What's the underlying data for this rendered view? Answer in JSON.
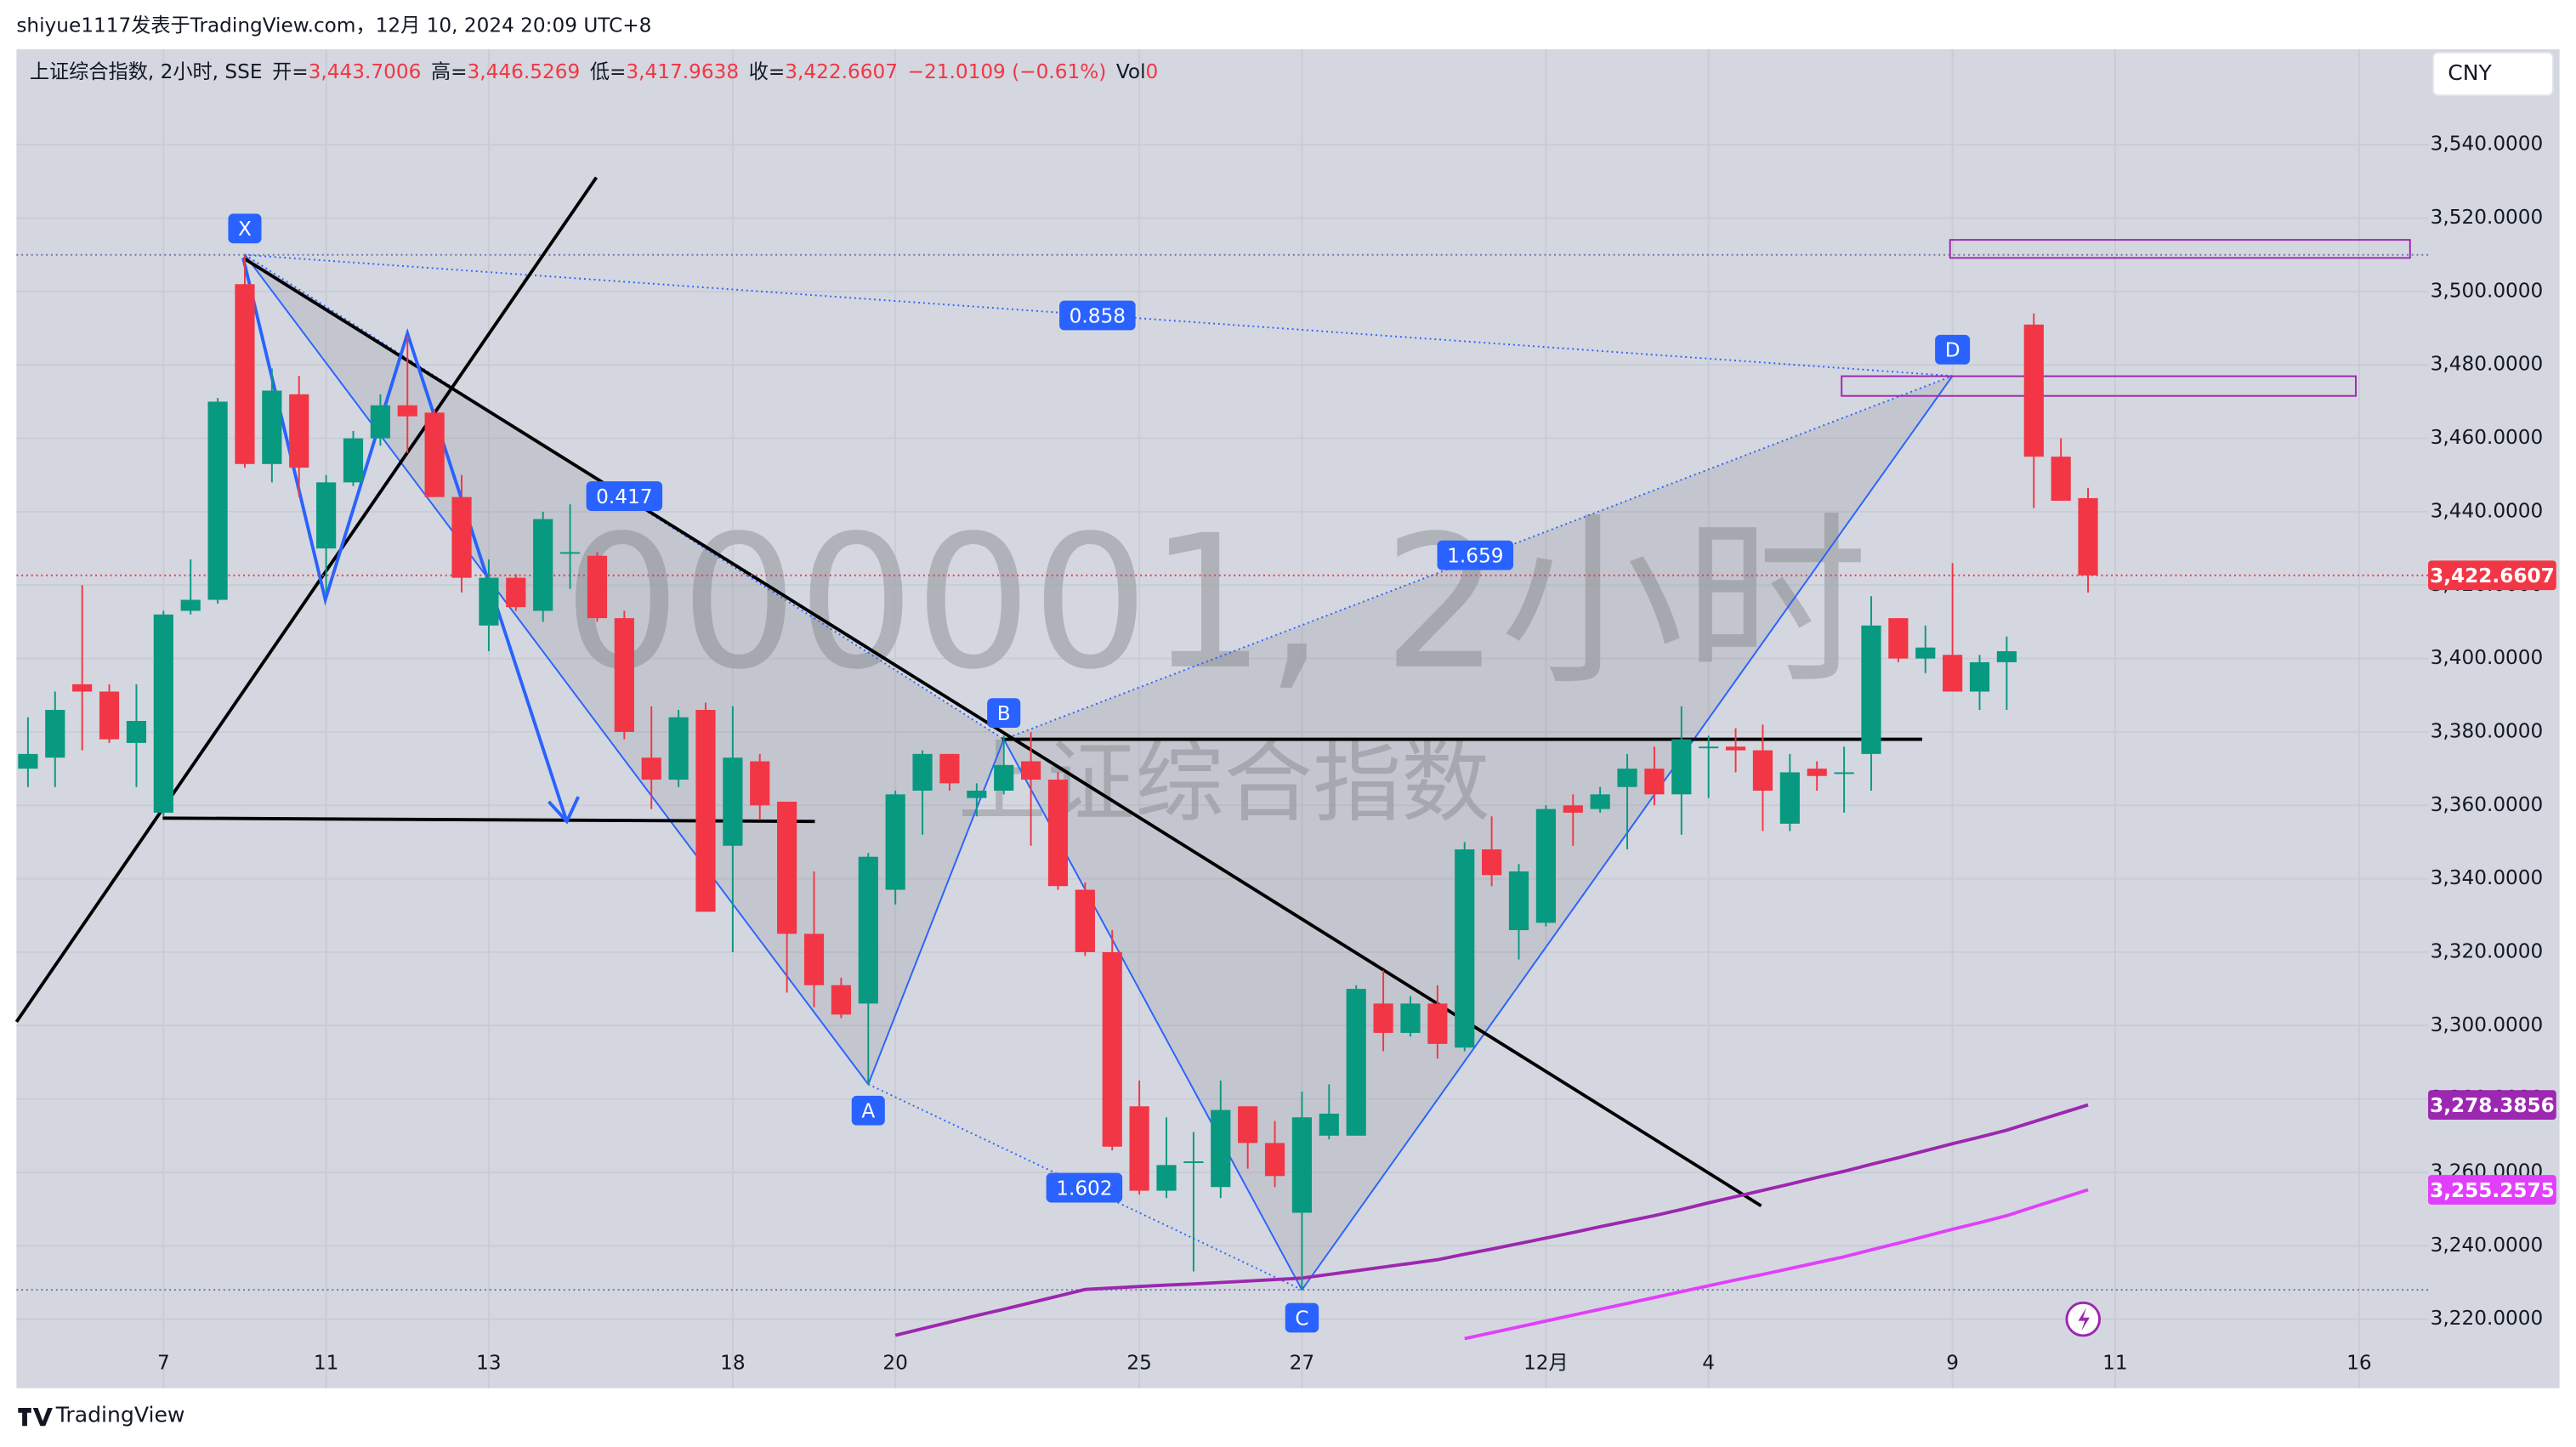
{
  "top_bar": {
    "text": "shiyue1117发表于TradingView.com，12月 10, 2024 20:09 UTC+8"
  },
  "header": {
    "symbol": "上证综合指数, 2小时, SSE",
    "fields": [
      {
        "name": "开=",
        "value": "3,443.7006"
      },
      {
        "name": "高=",
        "value": "3,446.5269"
      },
      {
        "name": "低=",
        "value": "3,417.9638"
      },
      {
        "name": "收=",
        "value": "3,422.6607"
      }
    ],
    "change": "−21.0109 (−0.61%)",
    "volume_name": "Vol",
    "volume_value": "0"
  },
  "currency": "CNY",
  "watermark": {
    "line1": "000001, 2小时",
    "line2": "上证综合指数"
  },
  "footer": {
    "brand": "TradingView"
  },
  "chart_data": {
    "type": "candlestick",
    "up_color": "#089981",
    "down_color": "#f23645",
    "ylim": [
      3201.2,
      3566
    ],
    "yticks": [
      {
        "value": 3220,
        "label": "3,220.0000"
      },
      {
        "value": 3240,
        "label": "3,240.0000"
      },
      {
        "value": 3260,
        "label": "3,260.0000"
      },
      {
        "value": 3280,
        "label": "3,280.0000"
      },
      {
        "value": 3300,
        "label": "3,300.0000"
      },
      {
        "value": 3320,
        "label": "3,320.0000"
      },
      {
        "value": 3340,
        "label": "3,340.0000"
      },
      {
        "value": 3360,
        "label": "3,360.0000"
      },
      {
        "value": 3380,
        "label": "3,380.0000"
      },
      {
        "value": 3400,
        "label": "3,400.0000"
      },
      {
        "value": 3420,
        "label": "3,420.0000"
      },
      {
        "value": 3440,
        "label": "3,440.0000"
      },
      {
        "value": 3460,
        "label": "3,460.0000"
      },
      {
        "value": 3480,
        "label": "3,480.0000"
      },
      {
        "value": 3500,
        "label": "3,500.0000"
      },
      {
        "value": 3520,
        "label": "3,520.0000"
      },
      {
        "value": 3540,
        "label": "3,540.0000"
      }
    ],
    "xticks": [
      {
        "value": 5,
        "label": "7"
      },
      {
        "value": 11,
        "label": "11"
      },
      {
        "value": 17,
        "label": "13"
      },
      {
        "value": 26,
        "label": "18"
      },
      {
        "value": 32,
        "label": "20"
      },
      {
        "value": 41,
        "label": "25"
      },
      {
        "value": 47,
        "label": "27"
      },
      {
        "value": 56,
        "label": "12月"
      },
      {
        "value": 62,
        "label": "4"
      },
      {
        "value": 71,
        "label": "9"
      },
      {
        "value": 77,
        "label": "11"
      },
      {
        "value": 86,
        "label": "16"
      }
    ],
    "grid": true,
    "candles": [
      {
        "open": 3370,
        "high": 3384,
        "low": 3365,
        "close": 3374
      },
      {
        "open": 3373,
        "high": 3391,
        "low": 3365,
        "close": 3386
      },
      {
        "open": 3393,
        "high": 3420,
        "low": 3375,
        "close": 3391
      },
      {
        "open": 3391,
        "high": 3393,
        "low": 3377,
        "close": 3378
      },
      {
        "open": 3377,
        "high": 3393,
        "low": 3365,
        "close": 3383
      },
      {
        "open": 3358,
        "high": 3413,
        "low": 3357,
        "close": 3412
      },
      {
        "open": 3413,
        "high": 3427,
        "low": 3412,
        "close": 3416
      },
      {
        "open": 3416,
        "high": 3471,
        "low": 3415,
        "close": 3470
      },
      {
        "open": 3502,
        "high": 3510,
        "low": 3452,
        "close": 3453
      },
      {
        "open": 3453,
        "high": 3479,
        "low": 3448,
        "close": 3473
      },
      {
        "open": 3472,
        "high": 3477,
        "low": 3444,
        "close": 3452
      },
      {
        "open": 3430,
        "high": 3450,
        "low": 3418,
        "close": 3448
      },
      {
        "open": 3448,
        "high": 3462,
        "low": 3447,
        "close": 3460
      },
      {
        "open": 3460,
        "high": 3472,
        "low": 3458,
        "close": 3469
      },
      {
        "open": 3469,
        "high": 3488,
        "low": 3456,
        "close": 3466
      },
      {
        "open": 3467,
        "high": 3468,
        "low": 3444,
        "close": 3444
      },
      {
        "open": 3444,
        "high": 3450,
        "low": 3418,
        "close": 3422
      },
      {
        "open": 3409,
        "high": 3427,
        "low": 3402,
        "close": 3422
      },
      {
        "open": 3422,
        "high": 3423,
        "low": 3413,
        "close": 3414
      },
      {
        "open": 3413,
        "high": 3440,
        "low": 3410,
        "close": 3438
      },
      {
        "open": 3429,
        "high": 3442,
        "low": 3419,
        "close": 3429
      },
      {
        "open": 3428,
        "high": 3429,
        "low": 3410,
        "close": 3411
      },
      {
        "open": 3411,
        "high": 3413,
        "low": 3378,
        "close": 3380
      },
      {
        "open": 3373,
        "high": 3387,
        "low": 3359,
        "close": 3367
      },
      {
        "open": 3367,
        "high": 3386,
        "low": 3365,
        "close": 3384
      },
      {
        "open": 3386,
        "high": 3388,
        "low": 3331,
        "close": 3331
      },
      {
        "open": 3349,
        "high": 3387,
        "low": 3320,
        "close": 3373
      },
      {
        "open": 3372,
        "high": 3374,
        "low": 3356,
        "close": 3360
      },
      {
        "open": 3361,
        "high": 3361,
        "low": 3309,
        "close": 3325
      },
      {
        "open": 3325,
        "high": 3342,
        "low": 3305,
        "close": 3311
      },
      {
        "open": 3311,
        "high": 3313,
        "low": 3302,
        "close": 3303
      },
      {
        "open": 3306,
        "high": 3347,
        "low": 3284,
        "close": 3346
      },
      {
        "open": 3337,
        "high": 3364,
        "low": 3333,
        "close": 3363
      },
      {
        "open": 3364,
        "high": 3375,
        "low": 3352,
        "close": 3374
      },
      {
        "open": 3374,
        "high": 3374,
        "low": 3364,
        "close": 3366
      },
      {
        "open": 3362,
        "high": 3366,
        "low": 3357,
        "close": 3364
      },
      {
        "open": 3364,
        "high": 3379,
        "low": 3363,
        "close": 3371
      },
      {
        "open": 3372,
        "high": 3380,
        "low": 3349,
        "close": 3367
      },
      {
        "open": 3367,
        "high": 3369,
        "low": 3337,
        "close": 3338
      },
      {
        "open": 3337,
        "high": 3339,
        "low": 3319,
        "close": 3320
      },
      {
        "open": 3320,
        "high": 3326,
        "low": 3266,
        "close": 3267
      },
      {
        "open": 3278,
        "high": 3285,
        "low": 3254,
        "close": 3255
      },
      {
        "open": 3255,
        "high": 3275,
        "low": 3253,
        "close": 3262
      },
      {
        "open": 3263,
        "high": 3271,
        "low": 3233,
        "close": 3263
      },
      {
        "open": 3256,
        "high": 3285,
        "low": 3253,
        "close": 3277
      },
      {
        "open": 3278,
        "high": 3278,
        "low": 3261,
        "close": 3268
      },
      {
        "open": 3268,
        "high": 3274,
        "low": 3256,
        "close": 3259
      },
      {
        "open": 3249,
        "high": 3282,
        "low": 3228,
        "close": 3275
      },
      {
        "open": 3270,
        "high": 3284,
        "low": 3269,
        "close": 3276
      },
      {
        "open": 3270,
        "high": 3311,
        "low": 3270,
        "close": 3310
      },
      {
        "open": 3306,
        "high": 3315,
        "low": 3293,
        "close": 3298
      },
      {
        "open": 3298,
        "high": 3308,
        "low": 3297,
        "close": 3306
      },
      {
        "open": 3306,
        "high": 3311,
        "low": 3291,
        "close": 3295
      },
      {
        "open": 3294,
        "high": 3350,
        "low": 3293,
        "close": 3348
      },
      {
        "open": 3348,
        "high": 3357,
        "low": 3338,
        "close": 3341
      },
      {
        "open": 3326,
        "high": 3344,
        "low": 3318,
        "close": 3342
      },
      {
        "open": 3328,
        "high": 3360,
        "low": 3327,
        "close": 3359
      },
      {
        "open": 3360,
        "high": 3363,
        "low": 3349,
        "close": 3358
      },
      {
        "open": 3359,
        "high": 3365,
        "low": 3358,
        "close": 3363
      },
      {
        "open": 3365,
        "high": 3374,
        "low": 3348,
        "close": 3370
      },
      {
        "open": 3370,
        "high": 3376,
        "low": 3360,
        "close": 3363
      },
      {
        "open": 3363,
        "high": 3387,
        "low": 3352,
        "close": 3378
      },
      {
        "open": 3376,
        "high": 3379,
        "low": 3362,
        "close": 3376
      },
      {
        "open": 3376,
        "high": 3381,
        "low": 3369,
        "close": 3375
      },
      {
        "open": 3375,
        "high": 3382,
        "low": 3353,
        "close": 3364
      },
      {
        "open": 3355,
        "high": 3374,
        "low": 3353,
        "close": 3369
      },
      {
        "open": 3370,
        "high": 3372,
        "low": 3364,
        "close": 3368
      },
      {
        "open": 3369,
        "high": 3376,
        "low": 3358,
        "close": 3369
      },
      {
        "open": 3374,
        "high": 3417,
        "low": 3364,
        "close": 3409
      },
      {
        "open": 3411,
        "high": 3411,
        "low": 3399,
        "close": 3400
      },
      {
        "open": 3400,
        "high": 3409,
        "low": 3396,
        "close": 3403
      },
      {
        "open": 3401,
        "high": 3426,
        "low": 3391,
        "close": 3391
      },
      {
        "open": 3391,
        "high": 3401,
        "low": 3386,
        "close": 3399
      },
      {
        "open": 3399,
        "high": 3406,
        "low": 3386,
        "close": 3402
      },
      {
        "open": 3491,
        "high": 3494,
        "low": 3441,
        "close": 3455
      },
      {
        "open": 3455,
        "high": 3460,
        "low": 3443,
        "close": 3443
      },
      {
        "open": 3443.7006,
        "high": 3446.5269,
        "low": 3417.9638,
        "close": 3422.6607
      }
    ],
    "series": [
      {
        "color": "#9c27b0",
        "values": [
          null,
          null,
          null,
          null,
          null,
          null,
          null,
          null,
          null,
          null,
          null,
          null,
          null,
          null,
          null,
          null,
          null,
          null,
          null,
          null,
          null,
          null,
          null,
          null,
          null,
          null,
          null,
          null,
          null,
          null,
          null,
          null,
          3215.6,
          3217.4,
          3219.2,
          3221.0,
          3222.7,
          3224.5,
          3226.3,
          3228.1,
          3228.5,
          3228.9,
          3229.3,
          3229.6,
          3230.0,
          3230.4,
          3230.8,
          3231.2,
          3232.2,
          3233.2,
          3234.2,
          3235.2,
          3236.2,
          3237.7,
          3239.1,
          3240.6,
          3242.1,
          3243.6,
          3245.2,
          3246.7,
          3248.2,
          3249.9,
          3251.7,
          3253.4,
          3255.1,
          3256.8,
          3258.6,
          3260.3,
          3262.2,
          3264.0,
          3265.9,
          3267.8,
          3269.6,
          3271.5,
          3273.8,
          3276.1,
          3278.3856
        ]
      },
      {
        "color": "#e040fb",
        "values": [
          null,
          null,
          null,
          null,
          null,
          null,
          null,
          null,
          null,
          null,
          null,
          null,
          null,
          null,
          null,
          null,
          null,
          null,
          null,
          null,
          null,
          null,
          null,
          null,
          null,
          null,
          null,
          null,
          null,
          null,
          null,
          null,
          null,
          null,
          null,
          null,
          null,
          null,
          null,
          null,
          null,
          null,
          null,
          null,
          null,
          null,
          null,
          null,
          null,
          null,
          null,
          null,
          null,
          3214.7,
          3216.3,
          3217.9,
          3219.5,
          3221.1,
          3222.7,
          3224.3,
          3225.9,
          3227.5,
          3229.1,
          3230.7,
          3232.2,
          3233.8,
          3235.4,
          3237.0,
          3238.9,
          3240.7,
          3242.6,
          3244.5,
          3246.3,
          3248.2,
          3250.6,
          3252.9,
          3255.2575
        ]
      }
    ],
    "price_labels": [
      {
        "value": 3422.6607,
        "label": "3,422.6607",
        "color": "#f23645"
      },
      {
        "value": 3278.3856,
        "label": "3,278.3856",
        "color": "#9c27b0"
      },
      {
        "value": 3255.2575,
        "label": "3,255.2575",
        "color": "#e040fb"
      }
    ],
    "pattern": {
      "points": [
        {
          "name": "X",
          "value": 3510
        },
        {
          "name": "A",
          "value": 3284
        },
        {
          "name": "B",
          "value": 3378
        },
        {
          "name": "C",
          "value": 3228
        },
        {
          "name": "D",
          "value": 3477
        }
      ],
      "ratios": [
        "0.858",
        "0.417",
        "1.659",
        "1.602"
      ]
    }
  }
}
